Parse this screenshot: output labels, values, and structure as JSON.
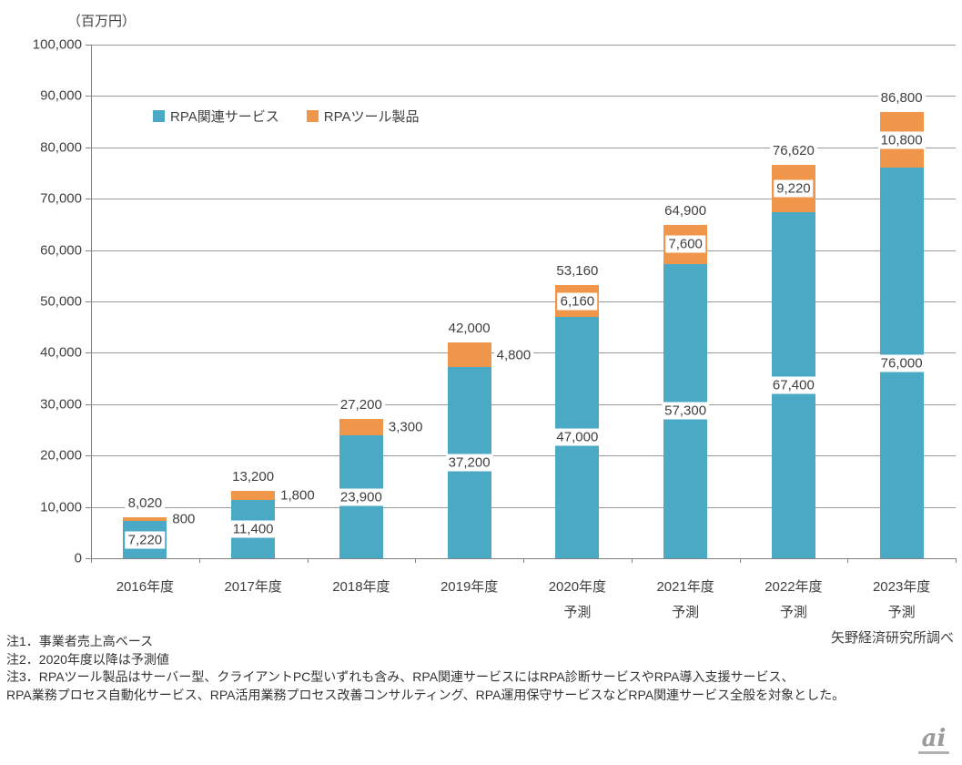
{
  "chart_data": {
    "type": "bar",
    "stacked": true,
    "title": "",
    "unit_label": "（百万円）",
    "xlabel": "",
    "ylabel": "百万円",
    "ylim": [
      0,
      100000
    ],
    "ytick_step": 10000,
    "grid": true,
    "legend_position": "top-left-inside",
    "categories": [
      "2016年度",
      "2017年度",
      "2018年度",
      "2019年度",
      "2020年度",
      "2021年度",
      "2022年度",
      "2023年度"
    ],
    "forecast_label": "予測",
    "forecast_from_index": 4,
    "series": [
      {
        "name": "RPA関連サービス",
        "color": "#4AA9C5",
        "values": [
          7220,
          11400,
          23900,
          37200,
          47000,
          57300,
          67400,
          76000
        ]
      },
      {
        "name": "RPAツール製品",
        "color": "#F0964B",
        "values": [
          800,
          1800,
          3300,
          4800,
          6160,
          7600,
          9220,
          10800
        ]
      }
    ],
    "totals": [
      8020,
      13200,
      27200,
      42000,
      53160,
      64900,
      76620,
      86800
    ],
    "tools_label_outside": [
      true,
      true,
      true,
      true,
      false,
      false,
      false,
      false
    ]
  },
  "source": "矢野経済研究所調べ",
  "notes": [
    "注1．事業者売上高ベース",
    "注2．2020年度以降は予測値",
    "注3．RPAツール製品はサーバー型、クライアントPC型いずれも含み、RPA関連サービスにはRPA診断サービスやRPA導入支援サービス、",
    "RPA業務プロセス自動化サービス、RPA活用業務プロセス改善コンサルティング、RPA運用保守サービスなどRPA関連サービス全般を対象とした。"
  ],
  "logo": {
    "text": "ai"
  }
}
